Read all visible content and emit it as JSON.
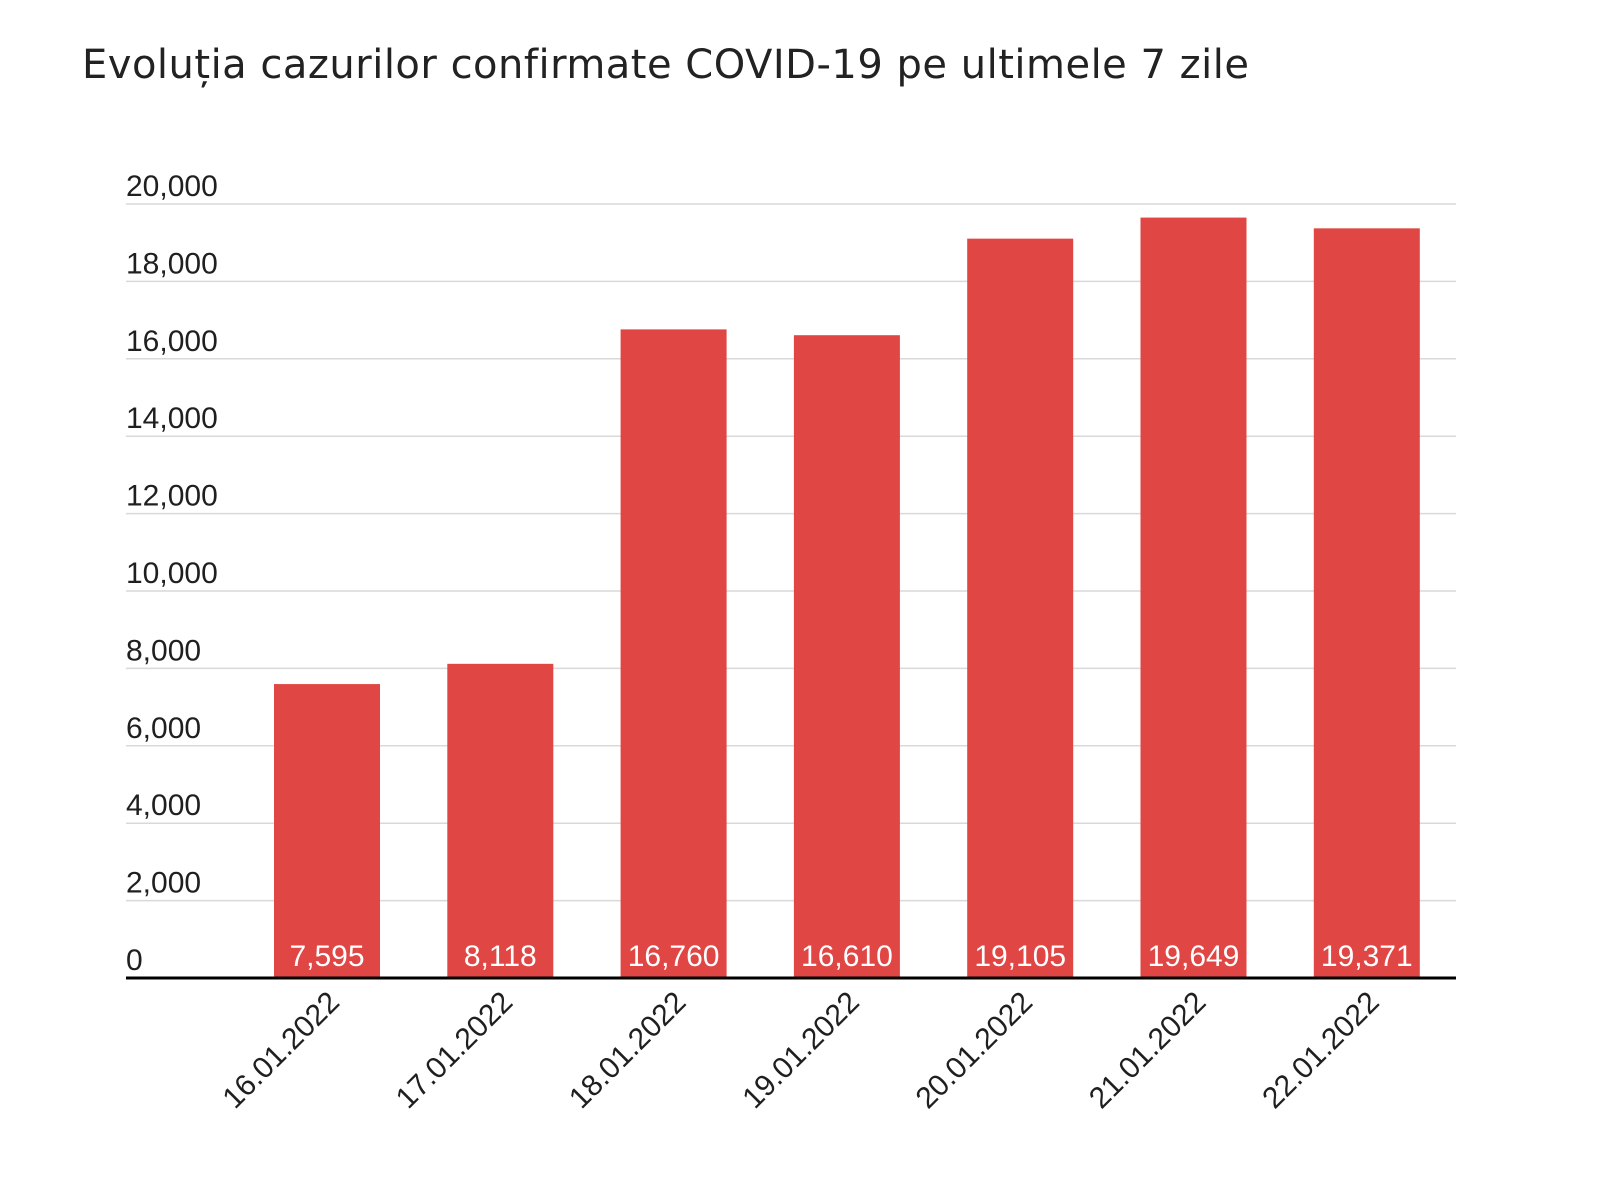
{
  "chart_data": {
    "type": "bar",
    "title": "Evoluția cazurilor confirmate COVID-19 pe ultimele 7 zile",
    "xlabel": "",
    "ylabel": "",
    "categories": [
      "16.01.2022",
      "17.01.2022",
      "18.01.2022",
      "19.01.2022",
      "20.01.2022",
      "21.01.2022",
      "22.01.2022"
    ],
    "values": [
      7595,
      8118,
      16760,
      16610,
      19105,
      19649,
      19371
    ],
    "data_labels": [
      "7,595",
      "8,118",
      "16,760",
      "16,610",
      "19,105",
      "19,649",
      "19,371"
    ],
    "ylim": [
      0,
      20000
    ],
    "yticks": [
      0,
      2000,
      4000,
      6000,
      8000,
      10000,
      12000,
      14000,
      16000,
      18000,
      20000
    ],
    "ytick_labels": [
      "0",
      "2,000",
      "4,000",
      "6,000",
      "8,000",
      "10,000",
      "12,000",
      "14,000",
      "16,000",
      "18,000",
      "20,000"
    ],
    "grid": true,
    "legend": "none",
    "bar_color": "#e04643",
    "gridline_color": "#d9d9d9",
    "baseline_color": "#000000",
    "data_label_color": "#ffffff"
  }
}
